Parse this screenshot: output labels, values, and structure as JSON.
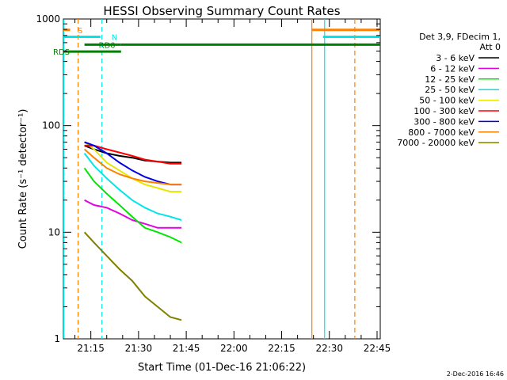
{
  "chart_data": {
    "type": "line",
    "title": "HESSI Observing Summary Count Rates",
    "xlabel": "Start Time (01-Dec-16 21:06:22)",
    "ylabel": "Count Rate (s⁻¹ detector⁻¹)",
    "yscale": "log",
    "ylim": [
      1,
      1000
    ],
    "xlim": [
      "21:06:22",
      "22:46:00"
    ],
    "x_ticks": [
      "21:15",
      "21:30",
      "21:45",
      "22:00",
      "22:15",
      "22:30",
      "22:45"
    ],
    "y_ticks": [
      "1",
      "10",
      "100",
      "1000"
    ],
    "legend": {
      "placement": "top-right",
      "header": [
        "Det 3,9, FDecim 1,",
        "Att 0"
      ]
    },
    "series": [
      {
        "name": "3 - 6 keV",
        "color": "#000000",
        "x": [
          "21:13",
          "21:16",
          "21:20",
          "21:24",
          "21:28",
          "21:32",
          "21:36",
          "21:40",
          "21:43:30"
        ],
        "values": [
          65,
          60,
          55,
          52,
          50,
          47,
          46,
          45,
          45
        ]
      },
      {
        "name": "6 - 12 keV",
        "color": "#e600e6",
        "x": [
          "21:13",
          "21:16",
          "21:20",
          "21:24",
          "21:28",
          "21:32",
          "21:36",
          "21:40",
          "21:43:30"
        ],
        "values": [
          20,
          18,
          17,
          15,
          13,
          12,
          11,
          11,
          11
        ]
      },
      {
        "name": "12 - 25 keV",
        "color": "#00e600",
        "x": [
          "21:13",
          "21:16",
          "21:20",
          "21:24",
          "21:28",
          "21:32",
          "21:36",
          "21:40",
          "21:43:30"
        ],
        "values": [
          40,
          30,
          23,
          18,
          14,
          11,
          10,
          9,
          8
        ]
      },
      {
        "name": "25 - 50 keV",
        "color": "#00e6e6",
        "x": [
          "21:13",
          "21:16",
          "21:20",
          "21:24",
          "21:28",
          "21:32",
          "21:36",
          "21:40",
          "21:43:30"
        ],
        "values": [
          55,
          42,
          32,
          25,
          20,
          17,
          15,
          14,
          13
        ]
      },
      {
        "name": "50 - 100 keV",
        "color": "#e6e600",
        "x": [
          "21:13",
          "21:16",
          "21:20",
          "21:24",
          "21:28",
          "21:32",
          "21:36",
          "21:40",
          "21:43:30"
        ],
        "values": [
          70,
          60,
          45,
          38,
          32,
          28,
          26,
          24,
          24
        ]
      },
      {
        "name": "100 - 300 keV",
        "color": "#ff0000",
        "x": [
          "21:13",
          "21:16",
          "21:20",
          "21:24",
          "21:28",
          "21:32",
          "21:36",
          "21:40",
          "21:43:30"
        ],
        "values": [
          65,
          65,
          60,
          56,
          52,
          48,
          46,
          44,
          44
        ]
      },
      {
        "name": "300 - 800 keV",
        "color": "#0000e6",
        "x": [
          "21:13",
          "21:16",
          "21:20",
          "21:24",
          "21:28",
          "21:32",
          "21:36",
          "21:40",
          "21:43:30"
        ],
        "values": [
          70,
          65,
          55,
          45,
          38,
          33,
          30,
          28,
          28
        ]
      },
      {
        "name": "800 - 7000 keV",
        "color": "#ff8000",
        "x": [
          "21:13",
          "21:16",
          "21:20",
          "21:24",
          "21:28",
          "21:32",
          "21:36",
          "21:40",
          "21:43:30"
        ],
        "values": [
          60,
          50,
          40,
          35,
          32,
          30,
          29,
          28,
          28
        ]
      },
      {
        "name": "7000 - 20000 keV",
        "color": "#808000",
        "x": [
          "21:13",
          "21:16",
          "21:20",
          "21:24",
          "21:28",
          "21:32",
          "21:36",
          "21:40",
          "21:43:30"
        ],
        "values": [
          10,
          8,
          6,
          4.5,
          3.5,
          2.5,
          2,
          1.6,
          1.5
        ]
      }
    ],
    "flags": [
      {
        "label": "S",
        "color": "#ff8000",
        "segments": [
          [
            "21:06:22",
            "21:08:30"
          ],
          [
            "22:24:30",
            "22:46:00"
          ]
        ],
        "y_level": 790
      },
      {
        "label": "N",
        "color": "#00e6e6",
        "segments": [
          [
            "21:06:22",
            "21:18:00"
          ],
          [
            "22:28:00",
            "22:46:00"
          ]
        ],
        "y_level": 680
      },
      {
        "label": "RD0",
        "color": "#008000",
        "segments": [
          [
            "21:13:00",
            "21:24:30"
          ]
        ],
        "y_level": 575
      },
      {
        "label": "RDS",
        "color": "#008000",
        "segments": [
          [
            "21:06:22",
            "21:24:30"
          ]
        ],
        "y_level": 495
      },
      {
        "label": "",
        "color": "#008000",
        "segments": [
          [
            "21:24:30",
            "22:46:00"
          ]
        ],
        "y_level": 575
      }
    ],
    "vertical_markers": [
      {
        "x": "21:06:30",
        "color": "#00e6e6",
        "style": "solid"
      },
      {
        "x": "21:11:00",
        "color": "#ff8000",
        "style": "dashed"
      },
      {
        "x": "21:18:30",
        "color": "#00e6e6",
        "style": "dashed"
      },
      {
        "x": "22:24:30",
        "color": "#ff8000",
        "style": "solid"
      },
      {
        "x": "22:28:30",
        "color": "#00e6e6",
        "style": "solid"
      },
      {
        "x": "22:38:00",
        "color": "#ff8000",
        "style": "dashed"
      }
    ]
  },
  "footer": {
    "date_stamp": "2-Dec-2016 16:46"
  }
}
